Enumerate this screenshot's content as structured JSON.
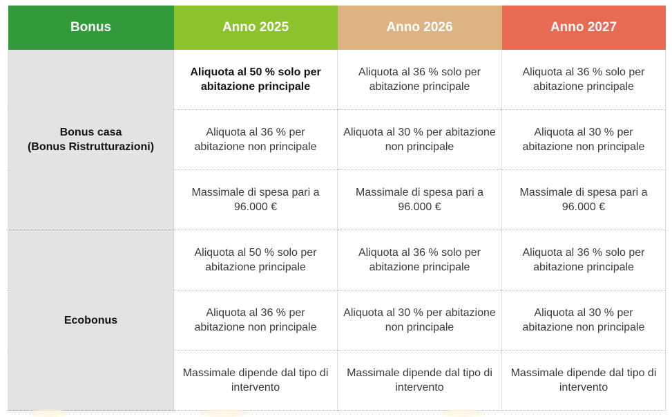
{
  "header": [
    "Bonus",
    "Anno 2025",
    "Anno 2026",
    "Anno 2027"
  ],
  "header_colors": [
    "#329A3A",
    "#8CC22C",
    "#DDB384",
    "#E96A52"
  ],
  "groups": [
    {
      "name_line1": "Bonus casa",
      "name_line2": "(Bonus Ristrutturazioni)",
      "rows": [
        [
          "Aliquota al 50 % solo per abitazione principale",
          "Aliquota al 36 % solo per abitazione principale",
          "Aliquota al 36 % solo per abitazione principale"
        ],
        [
          "Aliquota al 36 % per abitazione non principale",
          "Aliquota al 30 % per abitazione non principale",
          "Aliquota al 30 % per abitazione non principale"
        ],
        [
          "Massimale di spesa pari a 96.000 €",
          "Massimale di spesa pari a 96.000 €",
          "Massimale di spesa pari a 96.000 €"
        ]
      ]
    },
    {
      "name_line1": "Ecobonus",
      "name_line2": "",
      "rows": [
        [
          "Aliquota al 50 % solo per abitazione principale",
          "Aliquota al 36 % solo per abitazione principale",
          "Aliquota al 36 % solo per abitazione principale"
        ],
        [
          "Aliquota al 36 % per abitazione non principale",
          "Aliquota al 30 % per abitazione non principale",
          "Aliquota al 30 % per abitazione non principale"
        ],
        [
          "Massimale dipende dal tipo di intervento",
          "Massimale dipende dal tipo di intervento",
          "Massimale dipende dal tipo di intervento"
        ]
      ]
    }
  ]
}
